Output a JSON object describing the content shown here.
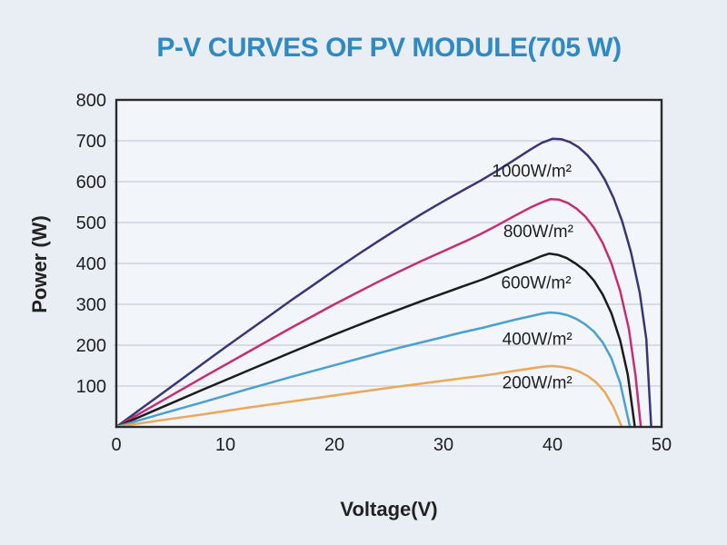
{
  "title": {
    "text": "P-V CURVES OF PV MODULE(705 W)",
    "color": "#2f8ac4"
  },
  "colors": {
    "background": "#e9eef5",
    "plot_background": "#f2f5f9",
    "grid": "#c9ced4",
    "axis": "#2b2b2b",
    "tick_text": "#1f1f1f",
    "label_text": "#1e1e1e"
  },
  "chart_data": {
    "type": "line",
    "title": "P-V CURVES OF PV MODULE(705 W)",
    "xlabel": "Voltage(V)",
    "ylabel": "Power (W)",
    "xlim": [
      0,
      50
    ],
    "ylim": [
      0,
      800
    ],
    "x_ticks": [
      0,
      10,
      20,
      30,
      40,
      50
    ],
    "y_ticks": [
      100,
      200,
      300,
      400,
      500,
      600,
      700,
      800
    ],
    "grid": "horizontal",
    "legend": "inline-labels",
    "series": [
      {
        "name": "1000W/m²",
        "color": "#373775",
        "max_power_w": 705,
        "vmp": 40.0,
        "voc": 49.05,
        "label": {
          "text": "1000W/m²",
          "v": 38.1,
          "p": 628
        },
        "points": [
          [
            0,
            0
          ],
          [
            2,
            39
          ],
          [
            4,
            78
          ],
          [
            6,
            117
          ],
          [
            8,
            156
          ],
          [
            10,
            195
          ],
          [
            12,
            233
          ],
          [
            14,
            271
          ],
          [
            16,
            309
          ],
          [
            18,
            346
          ],
          [
            20,
            383
          ],
          [
            22,
            419
          ],
          [
            24,
            454
          ],
          [
            26,
            488
          ],
          [
            28,
            521
          ],
          [
            30,
            552
          ],
          [
            32,
            582
          ],
          [
            33.5,
            604
          ],
          [
            35,
            628
          ],
          [
            36.5,
            653
          ],
          [
            38,
            679
          ],
          [
            39,
            695
          ],
          [
            40,
            705
          ],
          [
            40.8,
            704
          ],
          [
            41.6,
            697
          ],
          [
            42.4,
            684
          ],
          [
            43.2,
            665
          ],
          [
            44,
            639
          ],
          [
            44.8,
            605
          ],
          [
            45.6,
            560
          ],
          [
            46.4,
            502
          ],
          [
            47.2,
            427
          ],
          [
            48,
            328
          ],
          [
            48.6,
            215
          ],
          [
            49.05,
            0
          ]
        ]
      },
      {
        "name": "800W/m²",
        "color": "#c42e74",
        "max_power_w": 557,
        "vmp": 39.8,
        "voc": 48.1,
        "label": {
          "text": "800W/m²",
          "v": 38.7,
          "p": 480
        },
        "points": [
          [
            0,
            0
          ],
          [
            4,
            61
          ],
          [
            8,
            122
          ],
          [
            12,
            182
          ],
          [
            16,
            242
          ],
          [
            20,
            300
          ],
          [
            24,
            355
          ],
          [
            26,
            381
          ],
          [
            28,
            406
          ],
          [
            30,
            430
          ],
          [
            32,
            454
          ],
          [
            33.5,
            473
          ],
          [
            35,
            494
          ],
          [
            36.5,
            516
          ],
          [
            38,
            537
          ],
          [
            39,
            549
          ],
          [
            39.8,
            557
          ],
          [
            40.6,
            556
          ],
          [
            41.4,
            548
          ],
          [
            42.2,
            534
          ],
          [
            43,
            515
          ],
          [
            43.8,
            487
          ],
          [
            44.6,
            450
          ],
          [
            45.4,
            400
          ],
          [
            46.2,
            333
          ],
          [
            47,
            240
          ],
          [
            47.6,
            128
          ],
          [
            48.1,
            0
          ]
        ]
      },
      {
        "name": "600W/m²",
        "color": "#1c1c1c",
        "max_power_w": 424,
        "vmp": 39.7,
        "voc": 47.55,
        "label": {
          "text": "600W/m²",
          "v": 38.5,
          "p": 354
        },
        "points": [
          [
            0,
            0
          ],
          [
            4,
            46
          ],
          [
            8,
            92
          ],
          [
            12,
            137
          ],
          [
            16,
            182
          ],
          [
            20,
            226
          ],
          [
            24,
            268
          ],
          [
            26,
            288
          ],
          [
            28,
            308
          ],
          [
            30,
            327
          ],
          [
            32,
            346
          ],
          [
            33.5,
            360
          ],
          [
            35,
            376
          ],
          [
            36.5,
            392
          ],
          [
            38,
            407
          ],
          [
            39,
            418
          ],
          [
            39.7,
            424
          ],
          [
            40.5,
            421
          ],
          [
            41.3,
            413
          ],
          [
            42.1,
            400
          ],
          [
            43,
            382
          ],
          [
            43.8,
            358
          ],
          [
            44.6,
            324
          ],
          [
            45.4,
            278
          ],
          [
            46.2,
            212
          ],
          [
            46.9,
            128
          ],
          [
            47.55,
            0
          ]
        ]
      },
      {
        "name": "400W/m²",
        "color": "#4aa0cf",
        "max_power_w": 280,
        "vmp": 39.8,
        "voc": 47.1,
        "label": {
          "text": "400W/m²",
          "v": 38.6,
          "p": 217
        },
        "points": [
          [
            0,
            0
          ],
          [
            4,
            31
          ],
          [
            8,
            61
          ],
          [
            12,
            92
          ],
          [
            16,
            122
          ],
          [
            20,
            151
          ],
          [
            24,
            180
          ],
          [
            26,
            194
          ],
          [
            28,
            207
          ],
          [
            30,
            220
          ],
          [
            32,
            233
          ],
          [
            33.5,
            242
          ],
          [
            35,
            252
          ],
          [
            36.5,
            262
          ],
          [
            38,
            271
          ],
          [
            39,
            277
          ],
          [
            39.8,
            280
          ],
          [
            40.6,
            278
          ],
          [
            41.4,
            273
          ],
          [
            42.2,
            264
          ],
          [
            43,
            251
          ],
          [
            43.8,
            233
          ],
          [
            44.6,
            207
          ],
          [
            45.4,
            168
          ],
          [
            46.2,
            108
          ],
          [
            47.1,
            0
          ]
        ]
      },
      {
        "name": "200W/m²",
        "color": "#e9a85a",
        "max_power_w": 149,
        "vmp": 39.9,
        "voc": 46.35,
        "label": {
          "text": "200W/m²",
          "v": 38.6,
          "p": 110
        },
        "points": [
          [
            0,
            0
          ],
          [
            4,
            16
          ],
          [
            8,
            31
          ],
          [
            12,
            47
          ],
          [
            16,
            62
          ],
          [
            20,
            77
          ],
          [
            24,
            92
          ],
          [
            26,
            99
          ],
          [
            28,
            106
          ],
          [
            30,
            113
          ],
          [
            32,
            120
          ],
          [
            33.5,
            125
          ],
          [
            35,
            131
          ],
          [
            36.5,
            137
          ],
          [
            38,
            143
          ],
          [
            39,
            147
          ],
          [
            39.9,
            149
          ],
          [
            40.8,
            147
          ],
          [
            41.6,
            143
          ],
          [
            42.4,
            136
          ],
          [
            43.2,
            125
          ],
          [
            44,
            109
          ],
          [
            44.8,
            85
          ],
          [
            45.6,
            48
          ],
          [
            46.35,
            0
          ]
        ]
      }
    ]
  }
}
